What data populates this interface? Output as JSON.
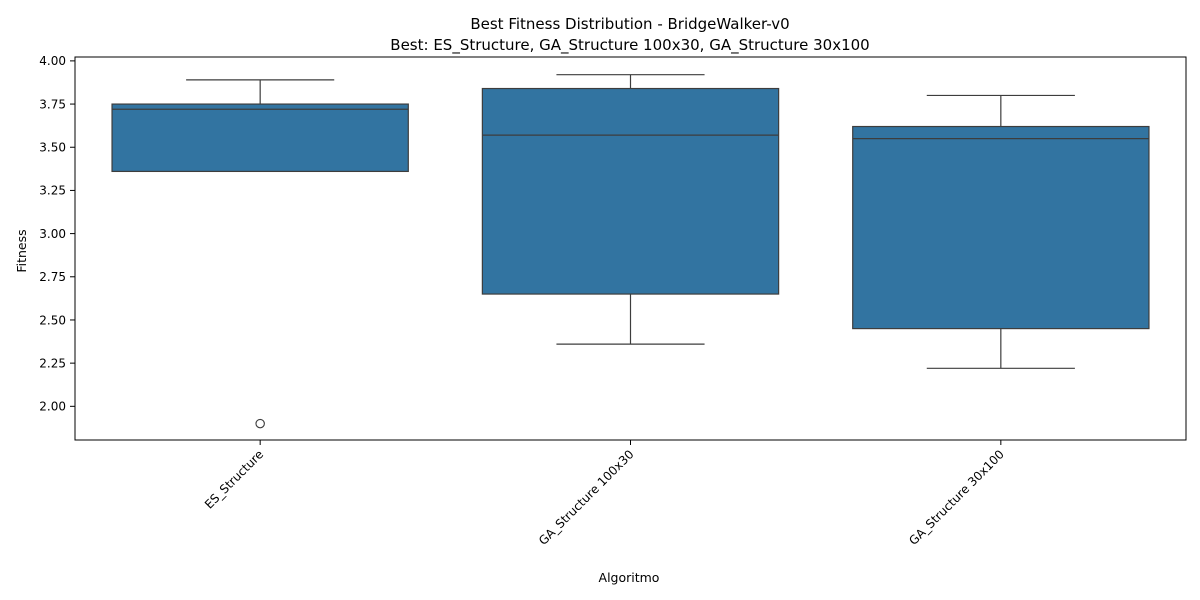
{
  "chart_data": {
    "type": "box",
    "title": "Best Fitness Distribution - BridgeWalker-v0",
    "subtitle": "Best: ES_Structure, GA_Structure 100x30, GA_Structure 30x100",
    "xlabel": "Algoritmo",
    "ylabel": "Fitness",
    "ylim": [
      1.805,
      4.0225
    ],
    "yticks": [
      2.0,
      2.25,
      2.5,
      2.75,
      3.0,
      3.25,
      3.5,
      3.75,
      4.0
    ],
    "ytick_labels": [
      "2.00",
      "2.25",
      "2.50",
      "2.75",
      "3.00",
      "3.25",
      "3.50",
      "3.75",
      "4.00"
    ],
    "categories": [
      "ES_Structure",
      "GA_Structure 100x30",
      "GA_Structure 30x100"
    ],
    "boxes": [
      {
        "category": "ES_Structure",
        "whisker_low": 3.36,
        "q1": 3.36,
        "median": 3.72,
        "q3": 3.75,
        "whisker_high": 3.89,
        "outliers": [
          1.9
        ]
      },
      {
        "category": "GA_Structure 100x30",
        "whisker_low": 2.36,
        "q1": 2.65,
        "median": 3.57,
        "q3": 3.84,
        "whisker_high": 3.92,
        "outliers": []
      },
      {
        "category": "GA_Structure 30x100",
        "whisker_low": 2.22,
        "q1": 2.45,
        "median": 3.55,
        "q3": 3.62,
        "whisker_high": 3.8,
        "outliers": []
      }
    ],
    "box_color": "#3274a1",
    "line_color": "#3d3d3d",
    "grid": false,
    "legend": "none"
  }
}
